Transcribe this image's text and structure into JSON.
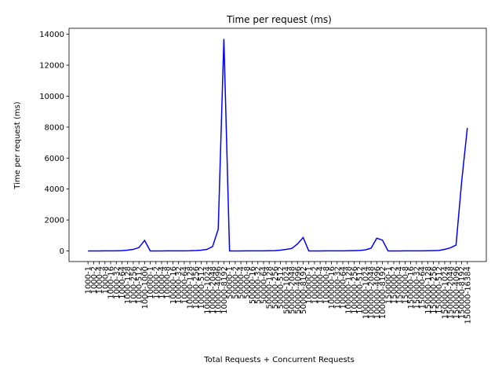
{
  "chart_data": {
    "type": "line",
    "title": "Time per request (ms)",
    "x_label": "Total Requests + Concurrent Requests",
    "y_label": "Time per request (ms)",
    "categories": [
      "1000-1",
      "1000-2",
      "1000-4",
      "1000-8",
      "1000-16",
      "1000-32",
      "1000-64",
      "1000-128",
      "1000-256",
      "1000-512",
      "1000-1000",
      "10000-1",
      "10000-2",
      "10000-4",
      "10000-8",
      "10000-16",
      "10000-32",
      "10000-64",
      "10000-128",
      "10000-256",
      "10000-512",
      "10000-1024",
      "10000-2048",
      "10000-4096",
      "10000-8192",
      "50000-1",
      "50000-2",
      "50000-4",
      "50000-8",
      "50000-16",
      "50000-32",
      "50000-64",
      "50000-128",
      "50000-256",
      "50000-512",
      "50000-1024",
      "50000-2048",
      "50000-4096",
      "50000-8192",
      "100000-1",
      "100000-2",
      "100000-4",
      "100000-8",
      "100000-16",
      "100000-32",
      "100000-64",
      "100000-128",
      "100000-256",
      "100000-512",
      "100000-1024",
      "100000-2048",
      "100000-4096",
      "100000-8192",
      "150000-1",
      "150000-2",
      "150000-4",
      "150000-8",
      "150000-16",
      "150000-32",
      "150000-64",
      "150000-128",
      "150000-256",
      "150000-512",
      "150000-1024",
      "150000-2048",
      "150000-4096",
      "150000-8192",
      "150000-16384"
    ],
    "series": [
      {
        "name": "Time per request (ms)",
        "color": "#0000ff",
        "values": [
          2,
          3,
          3,
          4,
          5,
          8,
          20,
          50,
          100,
          220,
          680,
          2,
          3,
          3,
          4,
          5,
          6,
          8,
          12,
          25,
          50,
          100,
          280,
          1400,
          13700,
          2,
          3,
          3,
          4,
          5,
          6,
          8,
          12,
          20,
          50,
          100,
          160,
          450,
          870,
          2,
          3,
          3,
          4,
          5,
          6,
          8,
          12,
          20,
          30,
          70,
          180,
          820,
          700,
          2,
          3,
          3,
          4,
          5,
          6,
          8,
          12,
          20,
          30,
          100,
          200,
          380,
          4500,
          7950
        ]
      }
    ],
    "ylim": [
      -685,
      14385
    ],
    "yticks": [
      0,
      2000,
      4000,
      6000,
      8000,
      10000,
      12000,
      14000
    ]
  }
}
